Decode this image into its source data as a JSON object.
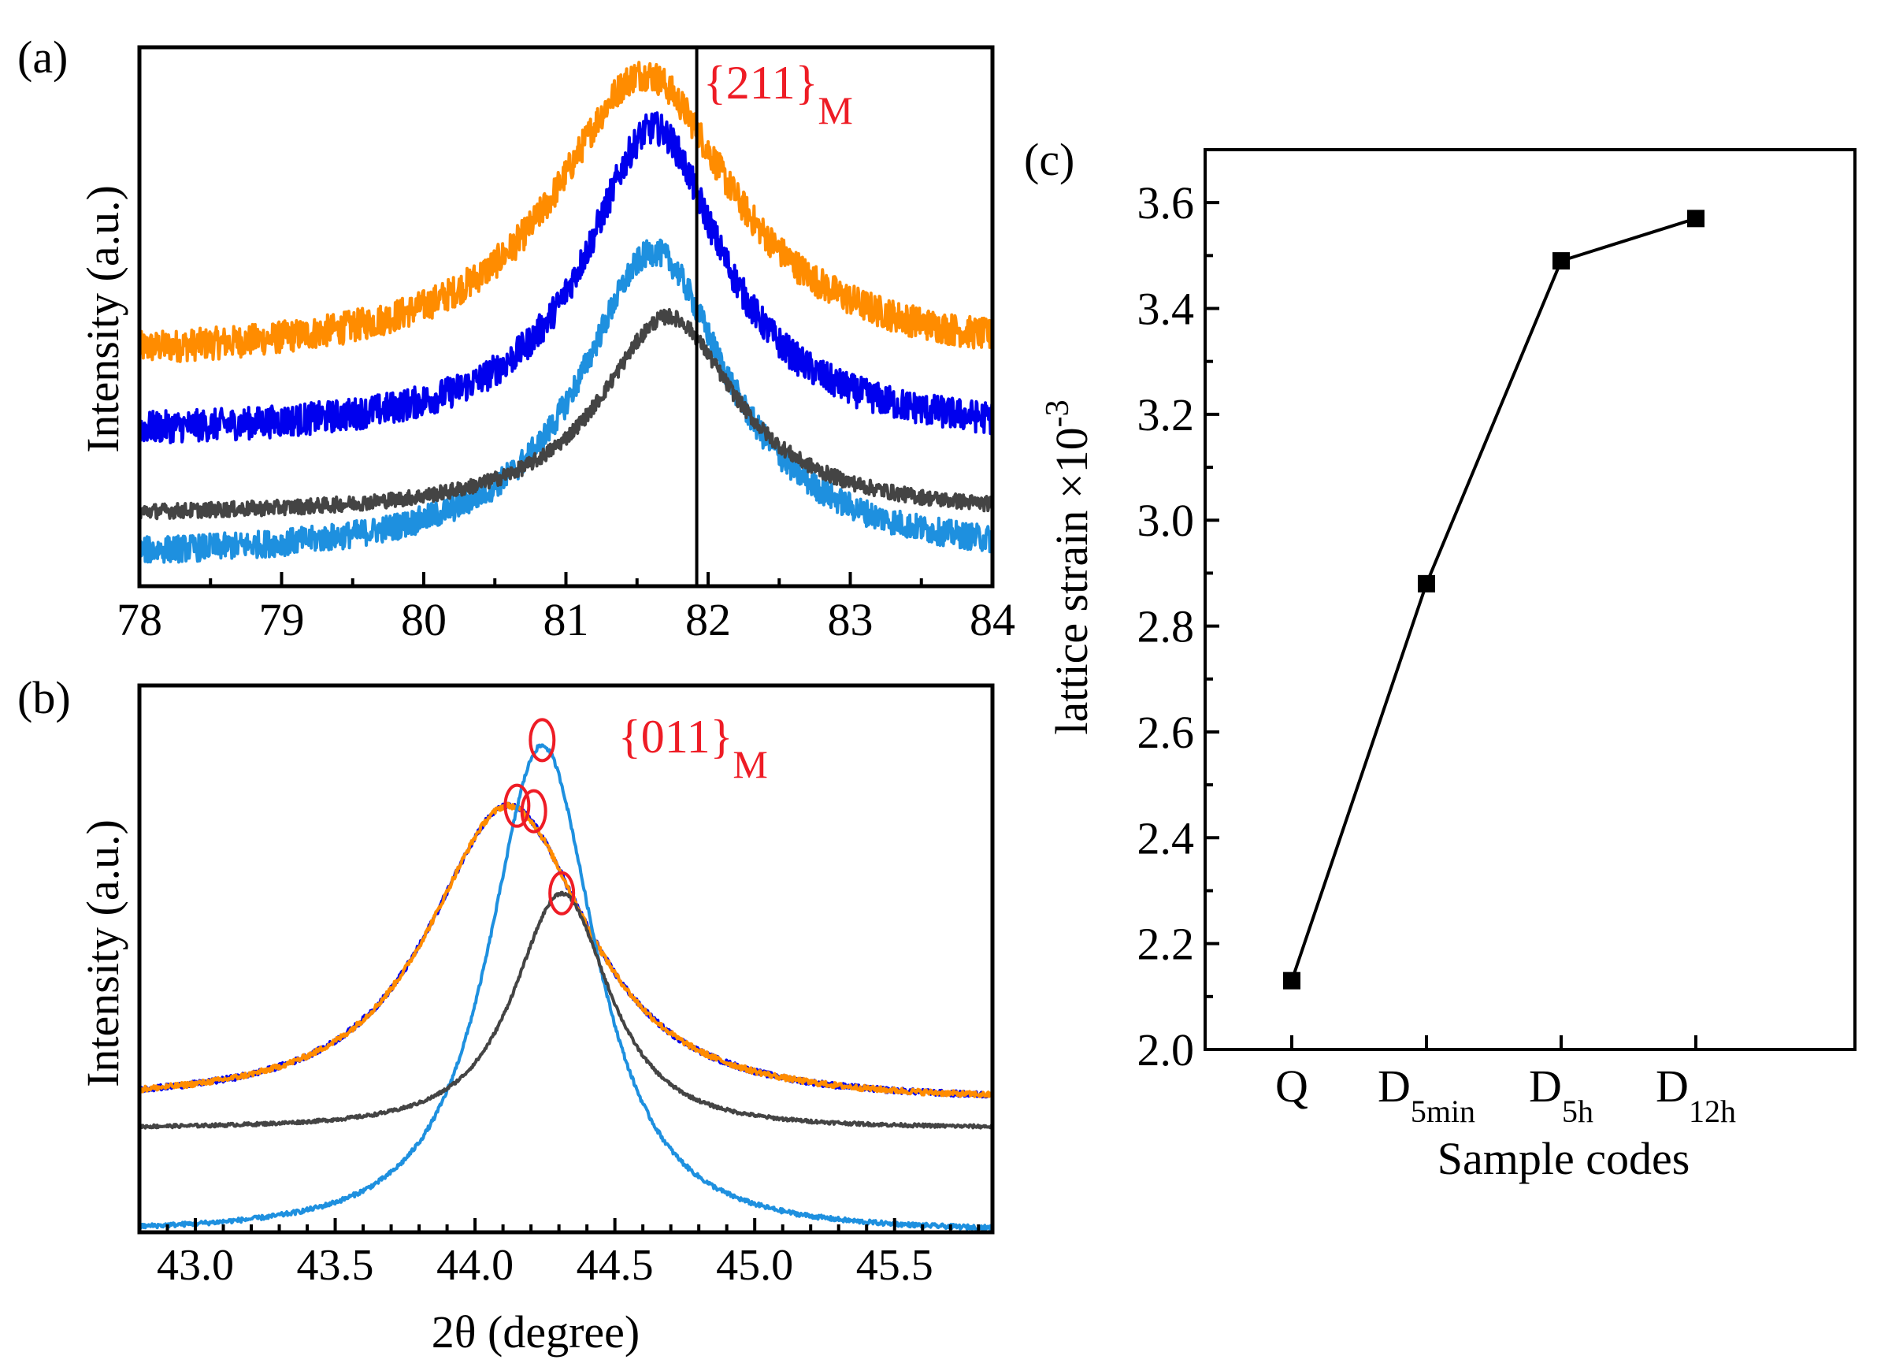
{
  "figure": {
    "panel_a_label": "(a)",
    "panel_b_label": "(b)",
    "panel_c_label": "(c)"
  },
  "colors": {
    "orange": "#FF8C00",
    "blue": "#0000EE",
    "lightblue": "#1E90DF",
    "gray": "#444444",
    "red": "#EE1C25",
    "black": "#000000"
  },
  "chart_data": [
    {
      "id": "a",
      "type": "line",
      "xlabel": "",
      "ylabel": "Intensity (a.u.)",
      "xlim": [
        78,
        84
      ],
      "ylim": [
        0,
        1.0
      ],
      "xticks": [
        "78",
        "79",
        "80",
        "81",
        "82",
        "83",
        "84"
      ],
      "reference_line": {
        "x": 81.92,
        "label_main": "{211}",
        "label_sub": "M"
      },
      "series": [
        {
          "name": "orange",
          "color": "#FF8C00",
          "baseline": 0.42,
          "amplitude": 0.53,
          "center": 81.55,
          "width": 0.75,
          "noise": 0.03,
          "x": [
            78,
            79,
            80,
            80.5,
            81,
            81.3,
            81.5,
            81.7,
            82,
            82.5,
            83,
            83.5,
            84
          ],
          "values": [
            0.43,
            0.44,
            0.47,
            0.55,
            0.7,
            0.82,
            0.89,
            0.92,
            0.85,
            0.68,
            0.55,
            0.47,
            0.43
          ]
        },
        {
          "name": "blue",
          "color": "#0000EE",
          "baseline": 0.28,
          "amplitude": 0.57,
          "center": 81.62,
          "width": 0.58,
          "noise": 0.03,
          "x": [
            78,
            79,
            80,
            80.5,
            81,
            81.3,
            81.5,
            81.7,
            82,
            82.5,
            83,
            83.5,
            84
          ],
          "values": [
            0.3,
            0.31,
            0.32,
            0.36,
            0.52,
            0.7,
            0.8,
            0.84,
            0.66,
            0.46,
            0.36,
            0.32,
            0.3
          ]
        },
        {
          "name": "lightblue",
          "color": "#1E90DF",
          "baseline": 0.05,
          "amplitude": 0.57,
          "center": 81.62,
          "width": 0.63,
          "noise": 0.025,
          "x": [
            78,
            79,
            80,
            80.5,
            81,
            81.3,
            81.5,
            81.7,
            82,
            82.5,
            83,
            83.5,
            84
          ],
          "values": [
            0.07,
            0.08,
            0.1,
            0.18,
            0.34,
            0.5,
            0.58,
            0.6,
            0.46,
            0.25,
            0.13,
            0.08,
            0.06
          ]
        },
        {
          "name": "gray",
          "color": "#444444",
          "baseline": 0.13,
          "amplitude": 0.37,
          "center": 81.72,
          "width": 0.58,
          "noise": 0.014,
          "x": [
            78,
            79,
            80,
            80.5,
            81,
            81.3,
            81.5,
            81.7,
            82,
            82.5,
            83,
            83.5,
            84
          ],
          "values": [
            0.13,
            0.14,
            0.15,
            0.17,
            0.24,
            0.34,
            0.43,
            0.49,
            0.42,
            0.25,
            0.17,
            0.14,
            0.14
          ]
        }
      ]
    },
    {
      "id": "b",
      "type": "line",
      "xlabel": "2θ (degree)",
      "ylabel": "Intensity (a.u.)",
      "xlim": [
        42.8,
        45.85
      ],
      "ylim": [
        0,
        1.0
      ],
      "xticks": [
        "43.0",
        "43.5",
        "44.0",
        "44.5",
        "45.0",
        "45.5"
      ],
      "annotation": {
        "label_main": "{011}",
        "label_sub": "M",
        "marked_peaks": [
          [
            44.24,
            0.9
          ],
          [
            44.15,
            0.78
          ],
          [
            44.21,
            0.77
          ],
          [
            44.31,
            0.62
          ]
        ]
      },
      "series": [
        {
          "name": "blue",
          "color": "#0000EE",
          "baseline": 0.24,
          "amplitude": 0.54,
          "center": 44.12,
          "width": 0.4,
          "noise": 0.005,
          "x": [
            42.8,
            43.5,
            43.8,
            44.0,
            44.12,
            44.3,
            44.5,
            44.8,
            45.2,
            45.85
          ],
          "values": [
            0.25,
            0.31,
            0.52,
            0.74,
            0.78,
            0.69,
            0.49,
            0.35,
            0.28,
            0.25
          ]
        },
        {
          "name": "orange",
          "color": "#FF8C00",
          "baseline": 0.24,
          "amplitude": 0.54,
          "center": 44.12,
          "width": 0.4,
          "noise": 0.005,
          "x": [
            42.8,
            43.5,
            43.8,
            44.0,
            44.12,
            44.3,
            44.5,
            44.8,
            45.2,
            45.85
          ],
          "values": [
            0.25,
            0.31,
            0.52,
            0.74,
            0.78,
            0.69,
            0.49,
            0.35,
            0.28,
            0.25
          ]
        },
        {
          "name": "lightblue",
          "color": "#1E90DF",
          "baseline": 0.0,
          "amplitude": 0.89,
          "center": 44.24,
          "width": 0.27,
          "noise": 0.004,
          "x": [
            42.8,
            43.5,
            43.8,
            44.0,
            44.24,
            44.5,
            44.7,
            45.0,
            45.5,
            45.85
          ],
          "values": [
            0.01,
            0.06,
            0.24,
            0.66,
            0.89,
            0.58,
            0.3,
            0.07,
            0.01,
            0.0
          ]
        },
        {
          "name": "gray",
          "color": "#444444",
          "baseline": 0.19,
          "amplitude": 0.43,
          "center": 44.31,
          "width": 0.24,
          "noise": 0.003,
          "x": [
            42.8,
            43.5,
            43.8,
            44.0,
            44.31,
            44.5,
            44.7,
            45.0,
            45.5,
            45.85
          ],
          "values": [
            0.18,
            0.19,
            0.21,
            0.31,
            0.62,
            0.45,
            0.3,
            0.21,
            0.18,
            0.17
          ]
        }
      ]
    },
    {
      "id": "c",
      "type": "line",
      "title": "",
      "xlabel": "Sample codes",
      "ylabel_main": "lattice strain ×10",
      "ylabel_sup": "-3",
      "ylim": [
        2.0,
        3.7
      ],
      "yticks": [
        "2.0",
        "2.2",
        "2.4",
        "2.6",
        "2.8",
        "3.0",
        "3.2",
        "3.4",
        "3.6"
      ],
      "categories": [
        {
          "main": "Q",
          "sub": ""
        },
        {
          "main": "D",
          "sub": "5min"
        },
        {
          "main": "D",
          "sub": "5h"
        },
        {
          "main": "D",
          "sub": "12h"
        }
      ],
      "values": [
        2.13,
        2.88,
        3.49,
        3.57
      ],
      "marker": "square"
    }
  ]
}
